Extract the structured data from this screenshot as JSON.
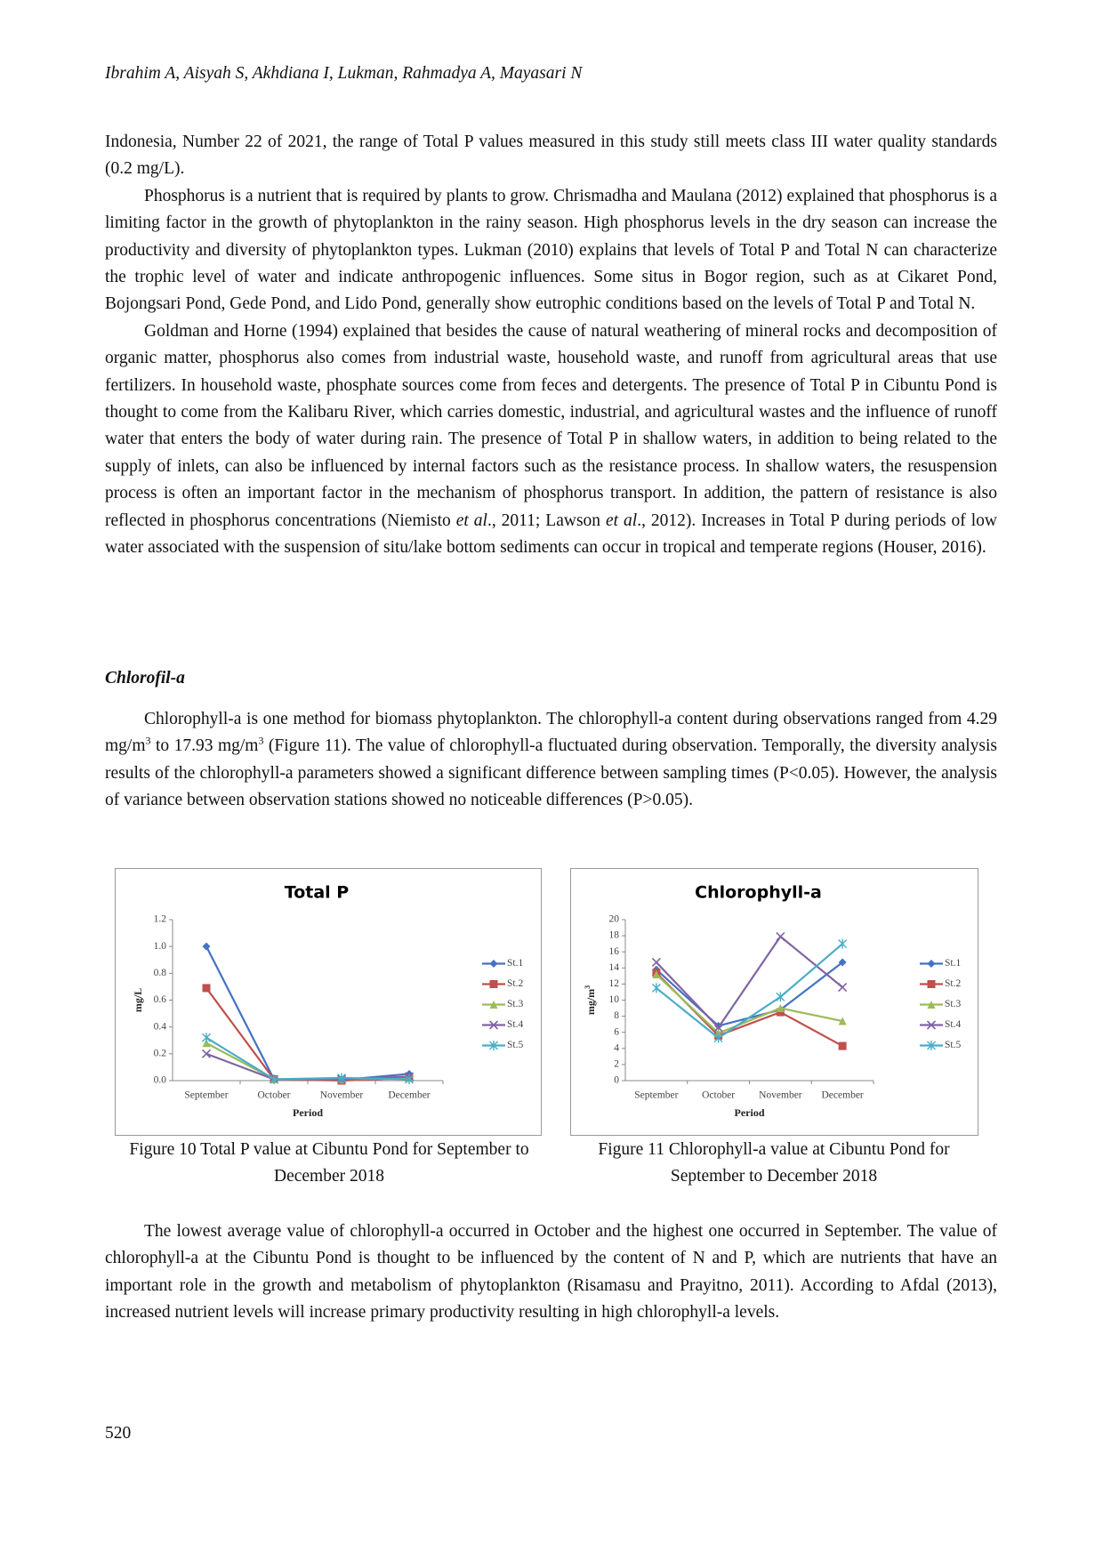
{
  "header": {
    "title": "Ibrahim A, Aisyah S, Akhdiana I, Lukman, Rahmadya A, Mayasari N"
  },
  "paragraphs": [
    [
      {
        "text": "Indonesia, Number 22 of 2021, the range of Total P values measured in this study still meets class III water quality standards (0.2 mg/L)."
      }
    ],
    [
      {
        "text": "Phosphorus is a nutrient that is required by plants to grow. Chrismadha and Maulana (2012) explained that phosphorus is a limiting factor in the growth of phytoplankton in the rainy season. High phosphorus levels in the dry season can increase the productivity and diversity of phytoplankton types. Lukman (2010) explains that levels of Total P and Total N can characterize the trophic level of water and indicate anthropogenic influences. Some situs in Bogor region, such as at Cikaret Pond, Bojongsari Pond, Gede Pond, and Lido Pond, generally show eutrophic conditions based on the levels of Total P and Total N."
      }
    ],
    [
      {
        "text": "Goldman and Horne (1994) explained that besides the cause of natural weathering of mineral rocks and decomposition of organic matter, phosphorus also comes from industrial waste, household waste, and runoff from agricultural areas that use fertilizers. In household waste, phosphate sources come from feces and detergents. The presence of Total P in Cibuntu Pond is thought to come from the Kalibaru River, which carries domestic, industrial, and agricultural wastes and the influence of runoff water that enters the body of water during rain. The presence of Total P in shallow waters, in addition to being related to the supply of inlets, can also be influenced by internal factors such as the resistance process. In shallow waters, the resuspension process is often an important factor in the mechanism of phosphorus transport. In addition, the pattern of resistance is also reflected in phosphorus concentrations (Niemisto "
      },
      {
        "text": "et al",
        "italic": true
      },
      {
        "text": "., 2011; Lawson "
      },
      {
        "text": "et al",
        "italic": true
      },
      {
        "text": "., 2012). Increases in Total P during periods of low water associated with the suspension of situ/lake bottom sediments can occur in tropical and temperate regions (Houser, 2016)."
      }
    ]
  ],
  "section_title": "Chlorofil-a",
  "section_paragraphs": [
    [
      {
        "text": "Chlorophyll-a is one method for biomass phytoplankton. The chlorophyll-a content during observations ranged from 4.29 mg/m"
      },
      {
        "text": "3",
        "sup": true
      },
      {
        "text": " to 17.93 mg/m"
      },
      {
        "text": "3",
        "sup": true
      },
      {
        "text": " (Figure 11). The value of chlorophyll-a fluctuated during observation. Temporally, the diversity analysis results of the chlorophyll-a parameters showed a significant difference between sampling times (P<0.05). However, the analysis of variance between observation stations showed no noticeable differences (P>0.05)."
      }
    ]
  ],
  "chart_data": [
    {
      "type": "line",
      "title": "Total P",
      "x_label": "Period",
      "y_label": "mg/L",
      "categories": [
        "September",
        "October",
        "November",
        "December"
      ],
      "ylim": [
        0,
        1.2
      ],
      "yticks": [
        {
          "value": 0,
          "label": "0.0"
        },
        {
          "value": 0.2,
          "label": "0.2"
        },
        {
          "value": 0.4,
          "label": "0.4"
        },
        {
          "value": 0.6,
          "label": "0.6"
        },
        {
          "value": 0.8,
          "label": "0.8"
        },
        {
          "value": 1.0,
          "label": "1.0"
        },
        {
          "value": 1.2,
          "label": "1.2"
        }
      ],
      "legend": "right",
      "series": [
        {
          "name": "St.1",
          "color": "#4472c4",
          "marker": "diamond",
          "values": [
            1.0,
            0.01,
            0.005,
            0.05
          ]
        },
        {
          "name": "St.2",
          "color": "#c0504d",
          "marker": "square",
          "values": [
            0.69,
            0.01,
            0.0,
            0.02
          ]
        },
        {
          "name": "St.3",
          "color": "#9bbb59",
          "marker": "triangle",
          "values": [
            0.28,
            0.01,
            0.01,
            0.02
          ]
        },
        {
          "name": "St.4",
          "color": "#8064a2",
          "marker": "x",
          "values": [
            0.2,
            0.01,
            0.01,
            0.03
          ]
        },
        {
          "name": "St.5",
          "color": "#4bacc6",
          "marker": "star",
          "values": [
            0.32,
            0.01,
            0.02,
            0.01
          ]
        }
      ]
    },
    {
      "type": "line",
      "title": "Chlorophyll-a",
      "x_label": "Period",
      "y_label": "mg/m",
      "y_label_superscript": "3",
      "categories": [
        "September",
        "October",
        "November",
        "December"
      ],
      "ylim": [
        0,
        20
      ],
      "yticks": [
        0,
        2,
        4,
        6,
        8,
        10,
        12,
        14,
        16,
        18,
        20
      ],
      "legend": "right",
      "series": [
        {
          "name": "St.1",
          "color": "#4472c4",
          "marker": "diamond",
          "values": [
            13.8,
            6.8,
            8.8,
            14.7
          ]
        },
        {
          "name": "St.2",
          "color": "#c0504d",
          "marker": "square",
          "values": [
            13.4,
            5.6,
            8.5,
            4.3
          ]
        },
        {
          "name": "St.3",
          "color": "#9bbb59",
          "marker": "triangle",
          "values": [
            13.2,
            5.9,
            9.0,
            7.4
          ]
        },
        {
          "name": "St.4",
          "color": "#8064a2",
          "marker": "x",
          "values": [
            14.7,
            6.6,
            17.9,
            11.6
          ]
        },
        {
          "name": "St.5",
          "color": "#4bacc6",
          "marker": "star",
          "values": [
            11.5,
            5.3,
            10.4,
            17.0
          ]
        }
      ]
    }
  ],
  "captions": [
    "Figure 10 Total P value at Cibuntu Pond for September to December 2018",
    "Figure 11 Chlorophyll-a value at Cibuntu Pond for September to December 2018"
  ],
  "closing_paragraphs": [
    [
      {
        "text": "The lowest average value of chlorophyll-a occurred in October and the highest one occurred in September. The value of chlorophyll-a at the Cibuntu Pond is thought to be influenced by the content of N and P, which are nutrients that have an important role in the growth and metabolism of phytoplankton (Risamasu and Prayitno, 2011). According to Afdal (2013), increased nutrient levels will increase primary productivity resulting in high chlorophyll-a levels."
      }
    ]
  ],
  "page_number": "520"
}
